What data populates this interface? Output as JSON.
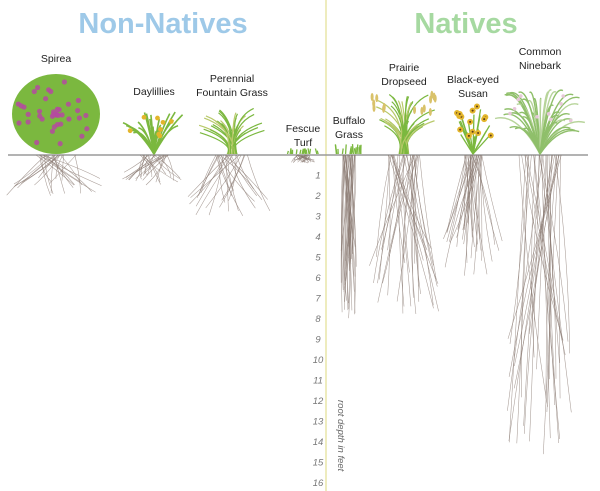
{
  "headings": {
    "left": "Non-Natives",
    "right": "Natives",
    "left_color": "#9ec9e8",
    "right_color": "#a6d9a1"
  },
  "axis": {
    "title": "root depth in feet",
    "ticks": [
      "1",
      "2",
      "3",
      "4",
      "5",
      "6",
      "7",
      "8",
      "9",
      "10",
      "11",
      "12",
      "13",
      "14",
      "15",
      "16"
    ]
  },
  "plants": [
    {
      "id": "spirea",
      "label": [
        "Spirea"
      ],
      "group": "non-native",
      "root_depth_ft": 2
    },
    {
      "id": "daylillies",
      "label": [
        "Daylillies"
      ],
      "group": "non-native",
      "root_depth_ft": 1.5
    },
    {
      "id": "perennial-fountain-grass",
      "label": [
        "Perennial",
        "Fountain Grass"
      ],
      "group": "non-native",
      "root_depth_ft": 3
    },
    {
      "id": "fescue-turf",
      "label": [
        "Fescue",
        "Turf"
      ],
      "group": "non-native",
      "root_depth_ft": 0.4
    },
    {
      "id": "buffalo-grass",
      "label": [
        "Buffalo",
        "Grass"
      ],
      "group": "native",
      "root_depth_ft": 8
    },
    {
      "id": "prairie-dropseed",
      "label": [
        "Prairie",
        "Dropseed"
      ],
      "group": "native",
      "root_depth_ft": 8
    },
    {
      "id": "black-eyed-susan",
      "label": [
        "Black-eyed",
        "Susan"
      ],
      "group": "native",
      "root_depth_ft": 6
    },
    {
      "id": "common-ninebark",
      "label": [
        "Common",
        "Ninebark"
      ],
      "group": "native",
      "root_depth_ft": 15.5
    }
  ],
  "colors": {
    "ground": "#9a9a9a",
    "root": "#8a7a72",
    "divider": "#e8e6a8",
    "foliage_green": "#7bb83f",
    "flower_purple": "#b54aa0",
    "flower_yellow": "#e3b52b"
  }
}
